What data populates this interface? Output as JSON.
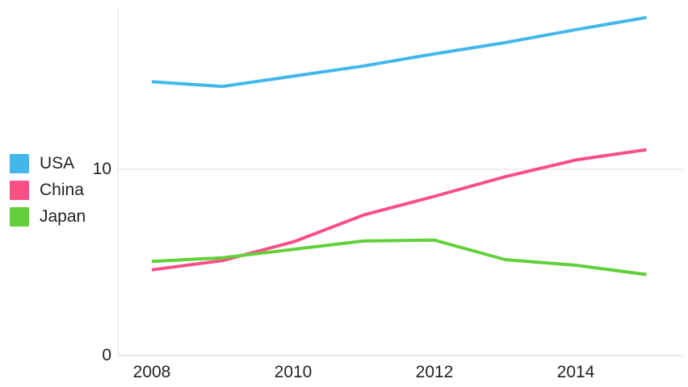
{
  "chart_data": {
    "type": "line",
    "title": "",
    "xlabel": "",
    "ylabel": "",
    "x": [
      2008,
      2009,
      2010,
      2011,
      2012,
      2013,
      2014,
      2015
    ],
    "series": [
      {
        "name": "USA",
        "color": "#41b7ea",
        "values": [
          14.7,
          14.45,
          15.0,
          15.55,
          16.2,
          16.8,
          17.5,
          18.15
        ]
      },
      {
        "name": "China",
        "color": "#fa4f85",
        "values": [
          4.6,
          5.1,
          6.1,
          7.55,
          8.55,
          9.6,
          10.5,
          11.05
        ]
      },
      {
        "name": "Japan",
        "color": "#62d03b",
        "values": [
          5.05,
          5.25,
          5.7,
          6.15,
          6.2,
          5.15,
          4.85,
          4.35
        ]
      }
    ],
    "xtick_labels": [
      "2008",
      "2010",
      "2012",
      "2014"
    ],
    "ytick_labels": [
      "0",
      "10"
    ],
    "ytick_values": [
      0,
      10
    ],
    "xlim": [
      2007.5,
      2015.5
    ],
    "ylim": [
      0,
      18.9
    ],
    "grid": "single horizontal gridline at y=10, baseline at y=0",
    "legend_position": "left",
    "line_width": 4
  },
  "axes": {
    "axis_line_color": "#e8e8e8",
    "grid_line_color": "#efefef",
    "text_color": "#232327"
  },
  "background": "#ffffff"
}
